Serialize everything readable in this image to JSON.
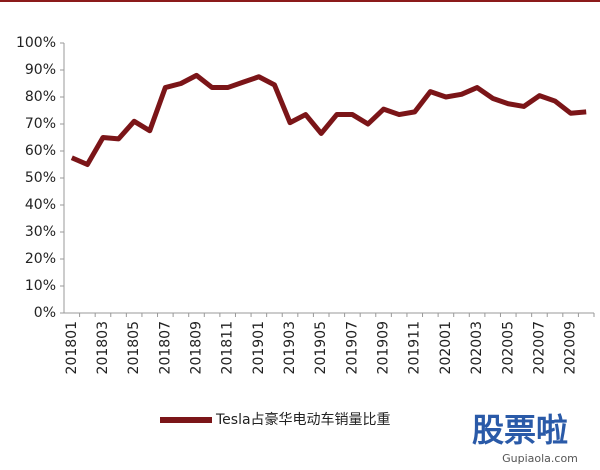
{
  "chart_data": {
    "type": "line",
    "categories": [
      "201801",
      null,
      "201803",
      null,
      "201805",
      null,
      "201807",
      null,
      "201809",
      null,
      "201811",
      null,
      "201901",
      null,
      "201903",
      null,
      "201905",
      null,
      "201907",
      null,
      "201909",
      null,
      "201911",
      null,
      "202001",
      null,
      "202003",
      null,
      "202005",
      null,
      "202007",
      null,
      "202009",
      null
    ],
    "series": [
      {
        "name": "Tesla占豪华电动车销量比重",
        "color": "#7b1518",
        "values": [
          57.5,
          55,
          65,
          64.5,
          71,
          67.5,
          83.5,
          85,
          88,
          83.5,
          83.5,
          85.5,
          87.5,
          84.5,
          70.5,
          73.5,
          66.5,
          73.5,
          73.5,
          70,
          75.5,
          73.5,
          74.5,
          82,
          80,
          81,
          83.5,
          79.5,
          77.5,
          76.5,
          80.5,
          78.5,
          74,
          74.5
        ]
      }
    ],
    "ylim": [
      0,
      100
    ],
    "yticks": [
      {
        "value": 0,
        "label": "0%"
      },
      {
        "value": 10,
        "label": "10%"
      },
      {
        "value": 20,
        "label": "20%"
      },
      {
        "value": 30,
        "label": "30%"
      },
      {
        "value": 40,
        "label": "40%"
      },
      {
        "value": 50,
        "label": "50%"
      },
      {
        "value": 60,
        "label": "60%"
      },
      {
        "value": 70,
        "label": "70%"
      },
      {
        "value": 80,
        "label": "80%"
      },
      {
        "value": 90,
        "label": "90%"
      },
      {
        "value": 100,
        "label": "100%"
      }
    ],
    "legend": "bottom",
    "watermark": "股票啦",
    "watermark_url": "Gupiaola.com"
  }
}
